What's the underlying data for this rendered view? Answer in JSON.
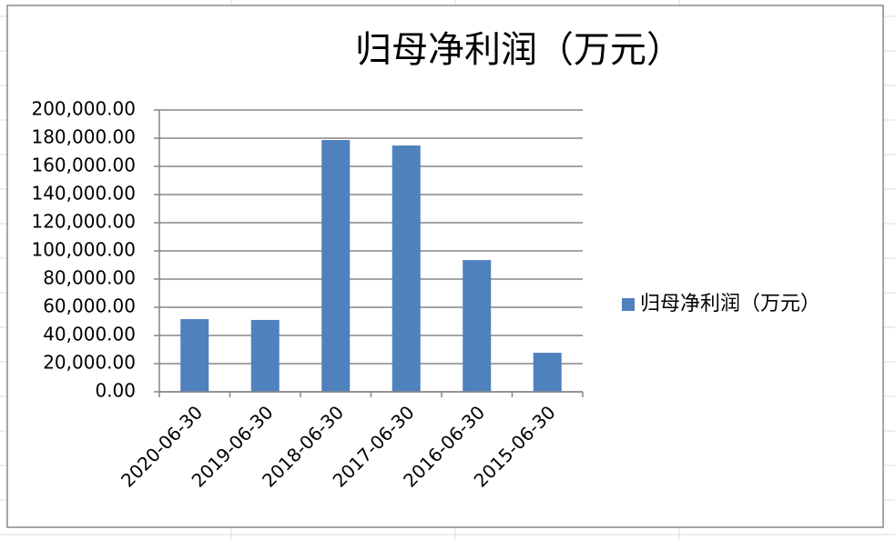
{
  "chart_data": {
    "type": "bar",
    "title": "归母净利润（万元）",
    "categories": [
      "2020-06-30",
      "2019-06-30",
      "2018-06-30",
      "2017-06-30",
      "2016-06-30",
      "2015-06-30"
    ],
    "series": [
      {
        "name": "归母净利润（万元）",
        "color": "#4f81bd",
        "values": [
          51600,
          51000,
          178700,
          174800,
          93500,
          27700
        ]
      }
    ],
    "ylim": [
      0,
      200000
    ],
    "yticks": [
      {
        "value": 0,
        "label": "0.00"
      },
      {
        "value": 20000,
        "label": "20,000.00"
      },
      {
        "value": 40000,
        "label": "40,000.00"
      },
      {
        "value": 60000,
        "label": "60,000.00"
      },
      {
        "value": 80000,
        "label": "80,000.00"
      },
      {
        "value": 100000,
        "label": "100,000.00"
      },
      {
        "value": 120000,
        "label": "120,000.00"
      },
      {
        "value": 140000,
        "label": "140,000.00"
      },
      {
        "value": 160000,
        "label": "160,000.00"
      },
      {
        "value": 180000,
        "label": "180,000.00"
      },
      {
        "value": 200000,
        "label": "200,000.00"
      }
    ],
    "grid": true,
    "legend": "right"
  }
}
